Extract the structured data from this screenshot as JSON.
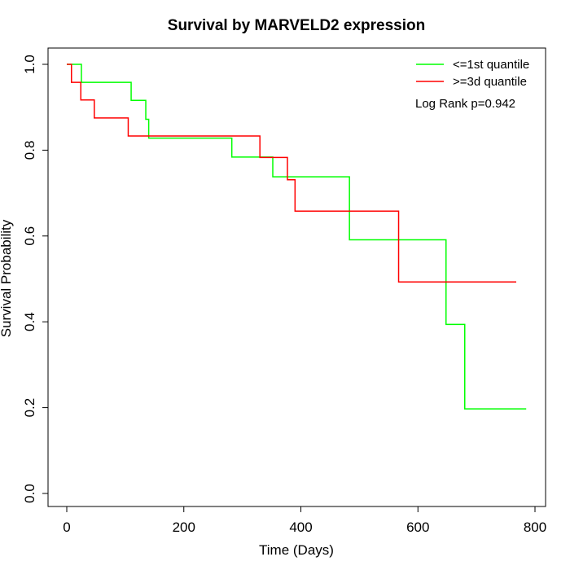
{
  "chart_data": {
    "type": "line",
    "title": "Survival by MARVELD2 expression",
    "xlabel": "Time (Days)",
    "ylabel": "Survival Probability",
    "xlim": [
      0,
      800
    ],
    "ylim": [
      0,
      1
    ],
    "xticks": [
      0,
      200,
      400,
      600,
      800
    ],
    "yticks": [
      0.0,
      0.2,
      0.4,
      0.6,
      0.8,
      1.0
    ],
    "xtick_labels": [
      "0",
      "200",
      "400",
      "600",
      "800"
    ],
    "ytick_labels": [
      "0.0",
      "0.2",
      "0.4",
      "0.6",
      "0.8",
      "1.0"
    ],
    "grid": false,
    "legend_position": "top-right",
    "annotation": "Log Rank p=0.942",
    "series": [
      {
        "name": "<=1st quantile",
        "color": "#00ff00",
        "step": true,
        "x": [
          0,
          25,
          110,
          135,
          140,
          282,
          352,
          483,
          648,
          680,
          785
        ],
        "y": [
          1.0,
          0.958,
          0.916,
          0.872,
          0.828,
          0.784,
          0.738,
          0.591,
          0.394,
          0.197,
          0.197
        ]
      },
      {
        "name": ">=3d quantile",
        "color": "#ff0000",
        "step": true,
        "x": [
          0,
          8,
          24,
          47,
          105,
          330,
          377,
          390,
          567,
          768
        ],
        "y": [
          1.0,
          0.958,
          0.917,
          0.875,
          0.833,
          0.783,
          0.731,
          0.658,
          0.493,
          0.493
        ]
      }
    ]
  }
}
